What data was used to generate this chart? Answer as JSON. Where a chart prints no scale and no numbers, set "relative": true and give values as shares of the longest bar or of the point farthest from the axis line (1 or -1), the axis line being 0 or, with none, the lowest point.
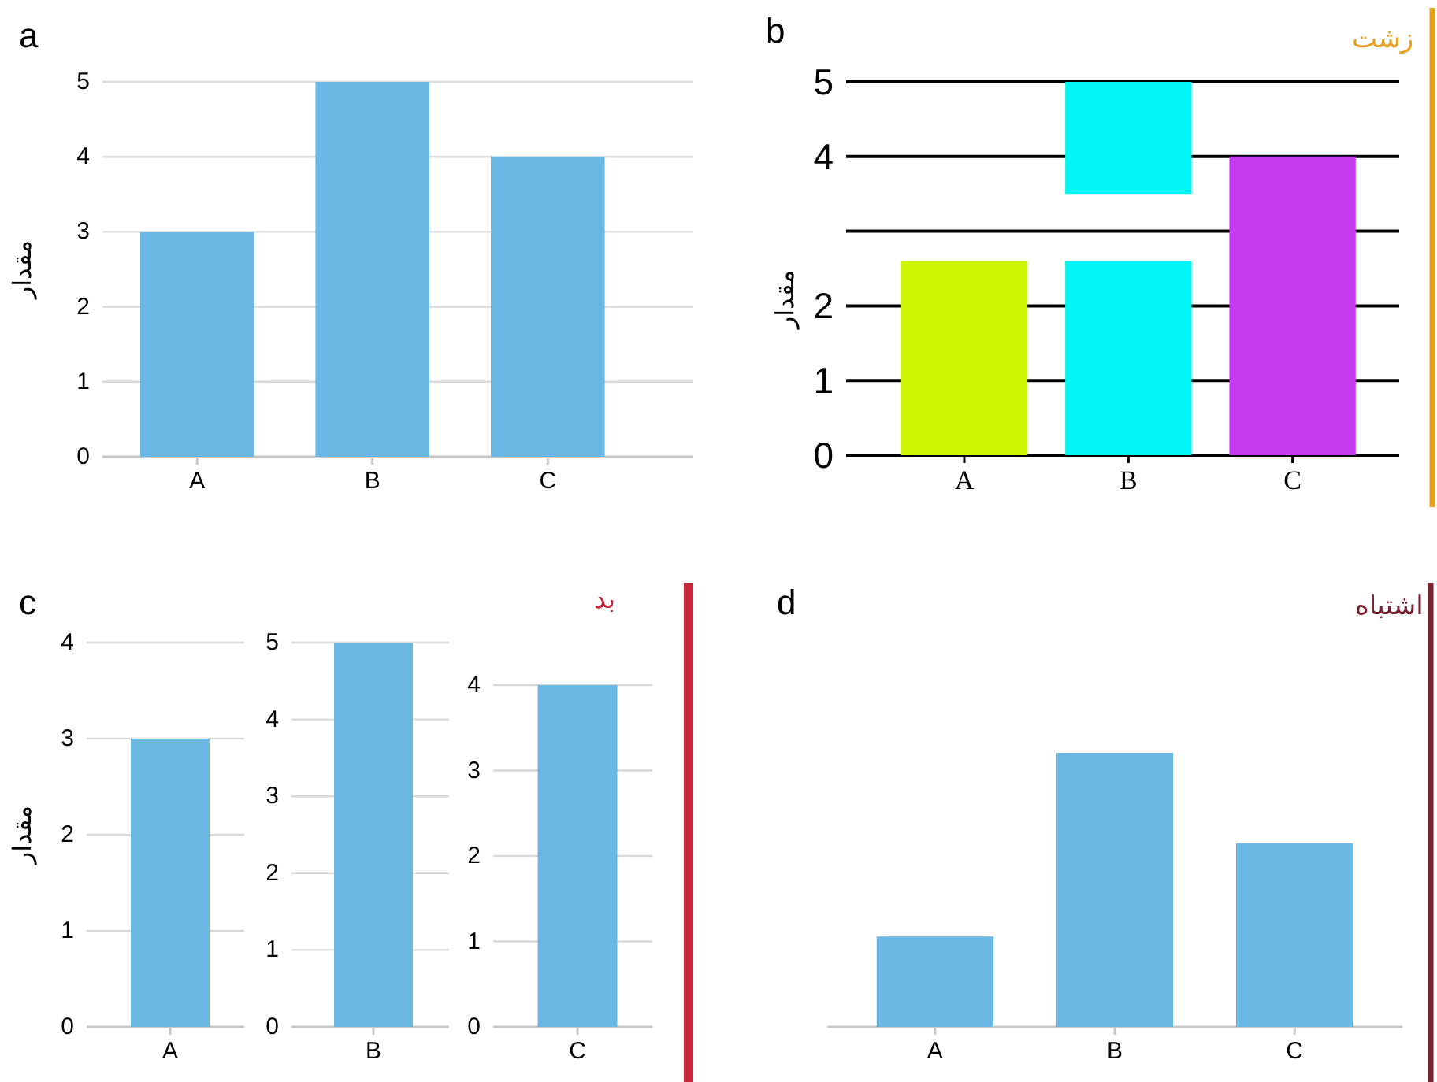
{
  "chart_data": [
    {
      "type": "bar",
      "title": "a",
      "ylabel": "مقدار",
      "categories": [
        "A",
        "B",
        "C"
      ],
      "values": [
        3,
        5,
        4
      ],
      "color": "#6bb8e4",
      "ylim": [
        0,
        5
      ],
      "yticks": [
        0,
        1,
        2,
        3,
        4,
        5
      ],
      "grid": "y"
    },
    {
      "type": "bar",
      "title": "b",
      "subtitle": "زشت",
      "ylabel": "مقدار",
      "categories": [
        "A",
        "B",
        "C"
      ],
      "series": [
        {
          "values": [
            2.6,
            2.6,
            4
          ],
          "colors": [
            "#ccf500",
            "#00f5f5",
            "#c83cf0"
          ]
        },
        {
          "values": [
            null,
            1.5,
            null
          ],
          "base": [
            null,
            3.5,
            null
          ],
          "color": "#00f5f5"
        }
      ],
      "ylim": [
        0,
        5
      ],
      "yticks": [
        0,
        1,
        2,
        {
          "value": 3,
          "label": null
        },
        4,
        5
      ],
      "grid": "y"
    },
    {
      "type": "bar",
      "title": "c",
      "ylabel": "مقدار",
      "categories": [
        "A"
      ],
      "values": [
        3
      ],
      "color": "#6bb8e4",
      "ylim": [
        0,
        4
      ],
      "yticks": [
        0,
        1,
        2,
        3,
        4
      ],
      "grid": "y"
    },
    {
      "type": "bar",
      "categories": [
        "B"
      ],
      "values": [
        5
      ],
      "color": "#6bb8e4",
      "ylim": [
        0,
        5
      ],
      "yticks": [
        0,
        1,
        2,
        3,
        4,
        5
      ],
      "grid": "y"
    },
    {
      "type": "bar",
      "subtitle": "بد",
      "categories": [
        "C"
      ],
      "values": [
        4
      ],
      "color": "#6bb8e4",
      "ylim": [
        0,
        4
      ],
      "yticks": [
        0,
        1,
        2,
        3,
        4
      ],
      "grid": "y"
    },
    {
      "type": "bar",
      "title": "d",
      "subtitle": "اشتباه",
      "categories": [
        "A",
        "B",
        "C"
      ],
      "values": [
        0.33,
        1,
        0.67
      ],
      "color": "#6bb8e4",
      "relative": true
    }
  ]
}
